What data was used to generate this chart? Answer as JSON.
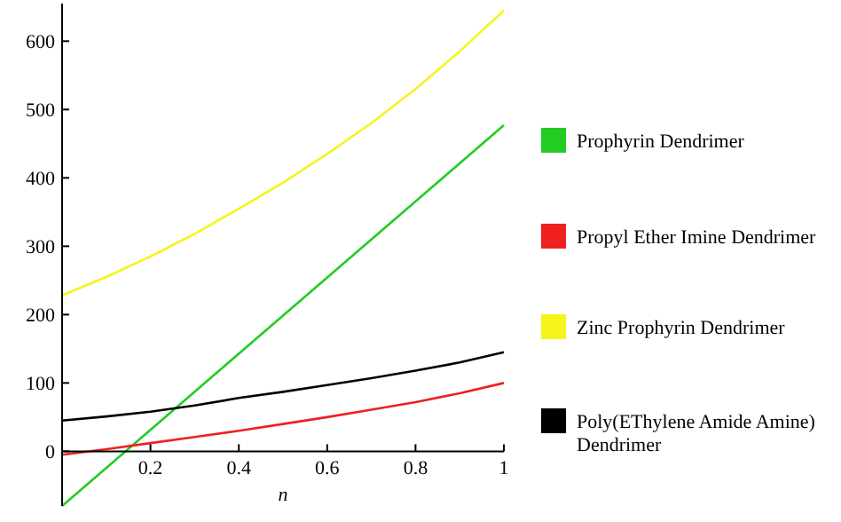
{
  "chart_data": {
    "type": "line",
    "xlabel": "n",
    "xlim": [
      0,
      1
    ],
    "ylim": [
      -80,
      655
    ],
    "xticks": [
      0.2,
      0.4,
      0.6,
      0.8,
      1
    ],
    "yticks": [
      0,
      100,
      200,
      300,
      400,
      500,
      600
    ],
    "grid": false,
    "legend": "right",
    "marker": "none",
    "line_style": "solid",
    "series": [
      {
        "name": "Prophyrin Dendrimer",
        "color": "#22cc22",
        "x": [
          0,
          1
        ],
        "values": [
          -80,
          477
        ]
      },
      {
        "name": "Propyl Ether Imine Dendrimer",
        "color": "#ee2020",
        "x": [
          0,
          0.1,
          0.2,
          0.3,
          0.4,
          0.5,
          0.6,
          0.7,
          0.8,
          0.9,
          1
        ],
        "values": [
          -5,
          3,
          12,
          21,
          30,
          40,
          50,
          61,
          72,
          85,
          100
        ]
      },
      {
        "name": "Zinc Prophyrin Dendrimer",
        "color": "#f5f51a",
        "x": [
          0,
          0.1,
          0.2,
          0.3,
          0.4,
          0.5,
          0.6,
          0.7,
          0.8,
          0.9,
          1
        ],
        "values": [
          228,
          255,
          285,
          318,
          355,
          393,
          435,
          480,
          530,
          585,
          645
        ]
      },
      {
        "name": "Poly(EThylene Amide Amine) Dendrimer",
        "color": "#000000",
        "x": [
          0,
          0.1,
          0.2,
          0.3,
          0.4,
          0.5,
          0.6,
          0.7,
          0.8,
          0.9,
          1
        ],
        "values": [
          45,
          51,
          58,
          67,
          78,
          87,
          97,
          107,
          118,
          130,
          145
        ]
      }
    ]
  }
}
